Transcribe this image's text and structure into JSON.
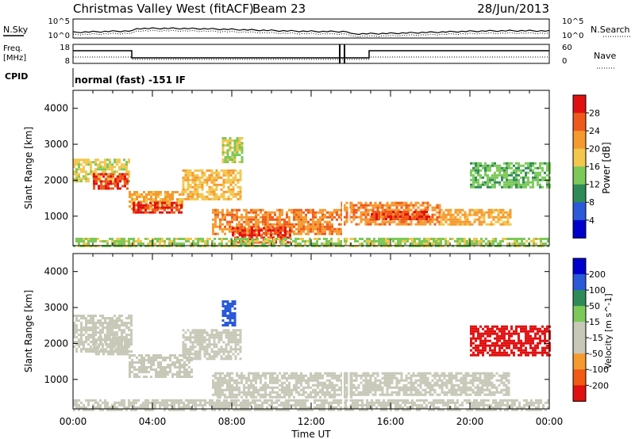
{
  "header": {
    "station": "Christmas Valley West (fitACF)",
    "beam": "Beam 23",
    "date": "28/Jun/2013"
  },
  "noise_panel": {
    "left_label": "N.Sky",
    "right_label": "N.Search",
    "left_ticks": [
      "10^5",
      "10^0"
    ],
    "right_ticks": [
      "10^5",
      "10^0"
    ]
  },
  "freq_panel": {
    "left_label_1": "Freq.",
    "left_label_2": "[MHz]",
    "right_label": "Nave",
    "left_ticks": [
      "18",
      "8"
    ],
    "right_ticks": [
      "60",
      "0"
    ]
  },
  "cpid_panel": {
    "label": "CPID",
    "text": "normal (fast) -151 IF"
  },
  "axes": {
    "ylabel": "Slant Range [km]",
    "xlabel": "Time UT",
    "yticks": [
      "4000",
      "3000",
      "2000",
      "1000"
    ],
    "xticks": [
      "00:00",
      "04:00",
      "08:00",
      "12:00",
      "16:00",
      "20:00",
      "00:00"
    ]
  },
  "colors": {
    "power": [
      "#0000cc",
      "#2a5ad8",
      "#2e8b57",
      "#7cc95a",
      "#f3c64d",
      "#f59a2f",
      "#ee5a1c",
      "#e01010"
    ],
    "velocity": [
      "#e01010",
      "#f05a14",
      "#f59a2f",
      "#c8c8b8",
      "#c8c8b8",
      "#7cc95a",
      "#2e8b57",
      "#2a5ad8",
      "#0000cc"
    ]
  },
  "chart_data": [
    {
      "type": "heatmap",
      "title": "Power [dB]",
      "xlabel": "Time UT",
      "ylabel": "Slant Range [km]",
      "xlim": [
        0,
        24
      ],
      "ylim": [
        180,
        4500
      ],
      "colorbar_label": "Power [dB]",
      "colorbar_ticks": [
        "28",
        "24",
        "20",
        "16",
        "12",
        "8",
        "4"
      ],
      "regions": [
        {
          "t": [
            0.0,
            2.8
          ],
          "r": [
            2000,
            2600
          ],
          "v": 16
        },
        {
          "t": [
            1.0,
            2.8
          ],
          "r": [
            1800,
            2200
          ],
          "v": 26
        },
        {
          "t": [
            2.8,
            5.5
          ],
          "r": [
            1200,
            1700
          ],
          "v": 20
        },
        {
          "t": [
            3.0,
            5.5
          ],
          "r": [
            1100,
            1400
          ],
          "v": 27
        },
        {
          "t": [
            5.5,
            8.5
          ],
          "r": [
            1500,
            2300
          ],
          "v": 18
        },
        {
          "t": [
            7.5,
            8.5
          ],
          "r": [
            2500,
            3200
          ],
          "v": 14
        },
        {
          "t": [
            7.0,
            13.5
          ],
          "r": [
            500,
            1200
          ],
          "v": 22
        },
        {
          "t": [
            8.0,
            11.0
          ],
          "r": [
            300,
            700
          ],
          "v": 27
        },
        {
          "t": [
            13.5,
            18.5
          ],
          "r": [
            800,
            1400
          ],
          "v": 22
        },
        {
          "t": [
            15.0,
            18.0
          ],
          "r": [
            950,
            1150
          ],
          "v": 26
        },
        {
          "t": [
            18.5,
            22.0
          ],
          "r": [
            800,
            1200
          ],
          "v": 20
        },
        {
          "t": [
            20.0,
            24.0
          ],
          "r": [
            1800,
            2500
          ],
          "v": 12
        },
        {
          "t": [
            0.0,
            24.0
          ],
          "r": [
            180,
            400
          ],
          "v": 14
        }
      ]
    },
    {
      "type": "heatmap",
      "title": "Velocity [m s^-1]",
      "xlabel": "Time UT",
      "ylabel": "Slant Range [km]",
      "xlim": [
        0,
        24
      ],
      "ylim": [
        180,
        4500
      ],
      "colorbar_label": "Velocity [m s^-1]",
      "colorbar_ticks": [
        "200",
        "100",
        "50",
        "15",
        "-15",
        "-50",
        "-100",
        "-200"
      ],
      "regions": [
        {
          "t": [
            0.0,
            3.0
          ],
          "r": [
            1800,
            2800
          ],
          "v": 0
        },
        {
          "t": [
            1.0,
            2.8
          ],
          "r": [
            1700,
            2200
          ],
          "v": -40
        },
        {
          "t": [
            2.8,
            6.0
          ],
          "r": [
            1100,
            1700
          ],
          "v": 0
        },
        {
          "t": [
            5.5,
            8.5
          ],
          "r": [
            1600,
            2400
          ],
          "v": 5
        },
        {
          "t": [
            7.5,
            8.2
          ],
          "r": [
            2500,
            3200
          ],
          "v": 150
        },
        {
          "t": [
            7.0,
            14.0
          ],
          "r": [
            500,
            1200
          ],
          "v": 0
        },
        {
          "t": [
            13.5,
            22.0
          ],
          "r": [
            600,
            1200
          ],
          "v": 0
        },
        {
          "t": [
            20.0,
            24.0
          ],
          "r": [
            1700,
            2500
          ],
          "v": -220
        },
        {
          "t": [
            0.0,
            24.0
          ],
          "r": [
            180,
            450
          ],
          "v": -60
        }
      ]
    }
  ]
}
